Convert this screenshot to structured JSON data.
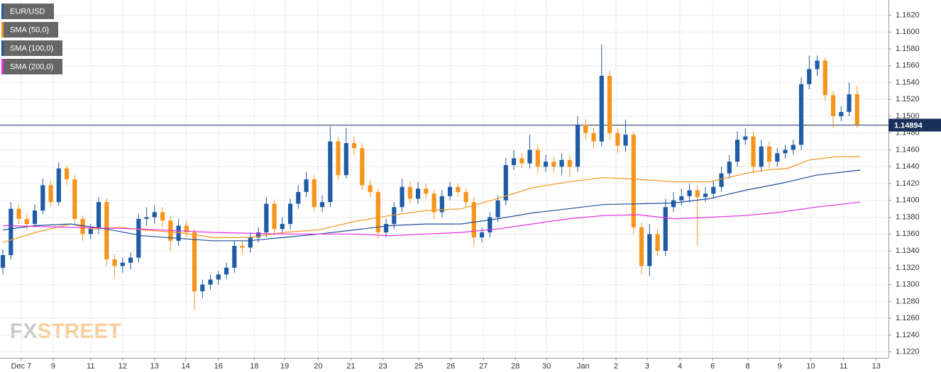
{
  "chart_data": {
    "type": "candlestick",
    "instrument": "EUR/USD",
    "up_color": "#1f5ca6",
    "down_color": "#f7941d",
    "legend": "top-left",
    "grid": true,
    "watermark": [
      "FX",
      "STREET"
    ],
    "last_price": 1.14894,
    "last_price_color": "#1b2f5c",
    "xlim": [
      -0.36,
      110.93
    ],
    "ylim": [
      1.1213,
      1.1638
    ],
    "xticks": [
      {
        "value": 2.3,
        "label": "Dec 7"
      },
      {
        "value": 6.3,
        "label": "9"
      },
      {
        "value": 11.0,
        "label": "11"
      },
      {
        "value": 15.0,
        "label": "12"
      },
      {
        "value": 19.0,
        "label": "13"
      },
      {
        "value": 22.9,
        "label": "14"
      },
      {
        "value": 27.0,
        "label": "16"
      },
      {
        "value": 31.5,
        "label": "18"
      },
      {
        "value": 35.3,
        "label": "19"
      },
      {
        "value": 39.5,
        "label": "20"
      },
      {
        "value": 43.6,
        "label": "21"
      },
      {
        "value": 47.6,
        "label": "23"
      },
      {
        "value": 52.1,
        "label": "25"
      },
      {
        "value": 56.1,
        "label": "26"
      },
      {
        "value": 60.2,
        "label": "27"
      },
      {
        "value": 64.2,
        "label": "28"
      },
      {
        "value": 68.1,
        "label": "30"
      },
      {
        "value": 72.7,
        "label": "Jan"
      },
      {
        "value": 76.8,
        "label": "2"
      },
      {
        "value": 80.7,
        "label": "3"
      },
      {
        "value": 84.8,
        "label": "4"
      },
      {
        "value": 88.9,
        "label": "6"
      },
      {
        "value": 93.3,
        "label": "8"
      },
      {
        "value": 97.3,
        "label": "9"
      },
      {
        "value": 101.2,
        "label": "10"
      },
      {
        "value": 105.3,
        "label": "11"
      },
      {
        "value": 109.4,
        "label": "13"
      }
    ],
    "yticks": [
      {
        "value": 1.122,
        "label": "1.1220"
      },
      {
        "value": 1.124,
        "label": "1.1240"
      },
      {
        "value": 1.126,
        "label": "1.1260"
      },
      {
        "value": 1.128,
        "label": "1.1280"
      },
      {
        "value": 1.13,
        "label": "1.1300"
      },
      {
        "value": 1.132,
        "label": "1.1320"
      },
      {
        "value": 1.134,
        "label": "1.1340"
      },
      {
        "value": 1.136,
        "label": "1.1360"
      },
      {
        "value": 1.138,
        "label": "1.1380"
      },
      {
        "value": 1.14,
        "label": "1.1400"
      },
      {
        "value": 1.142,
        "label": "1.1420"
      },
      {
        "value": 1.144,
        "label": "1.1440"
      },
      {
        "value": 1.146,
        "label": "1.1460"
      },
      {
        "value": 1.148,
        "label": "1.1480"
      },
      {
        "value": 1.15,
        "label": "1.1500"
      },
      {
        "value": 1.152,
        "label": "1.1520"
      },
      {
        "value": 1.154,
        "label": "1.1540"
      },
      {
        "value": 1.156,
        "label": "1.1560"
      },
      {
        "value": 1.158,
        "label": "1.1580"
      },
      {
        "value": 1.16,
        "label": "1.1600"
      },
      {
        "value": 1.162,
        "label": "1.1620"
      }
    ],
    "ohlc": [
      [
        1.132,
        1.1342,
        1.1312,
        1.1335
      ],
      [
        1.1335,
        1.1398,
        1.133,
        1.139
      ],
      [
        1.139,
        1.1395,
        1.1372,
        1.1378
      ],
      [
        1.1378,
        1.1384,
        1.1365,
        1.1372
      ],
      [
        1.1372,
        1.1395,
        1.1368,
        1.1388
      ],
      [
        1.1388,
        1.1426,
        1.1384,
        1.1418
      ],
      [
        1.1418,
        1.1424,
        1.1392,
        1.1398
      ],
      [
        1.1398,
        1.1445,
        1.1394,
        1.1438
      ],
      [
        1.1438,
        1.1442,
        1.1418,
        1.1425
      ],
      [
        1.1425,
        1.143,
        1.1372,
        1.1378
      ],
      [
        1.1378,
        1.1382,
        1.1352,
        1.136
      ],
      [
        1.136,
        1.1372,
        1.1354,
        1.1366
      ],
      [
        1.1366,
        1.1404,
        1.136,
        1.1398
      ],
      [
        1.1398,
        1.1402,
        1.1322,
        1.133
      ],
      [
        1.133,
        1.1336,
        1.1308,
        1.1322
      ],
      [
        1.1322,
        1.1332,
        1.1314,
        1.1326
      ],
      [
        1.1326,
        1.1338,
        1.1318,
        1.1332
      ],
      [
        1.1332,
        1.1384,
        1.1326,
        1.1378
      ],
      [
        1.1378,
        1.1392,
        1.137,
        1.138
      ],
      [
        1.138,
        1.1394,
        1.1372,
        1.1386
      ],
      [
        1.1386,
        1.1392,
        1.1368,
        1.1376
      ],
      [
        1.1376,
        1.1382,
        1.134,
        1.1352
      ],
      [
        1.1352,
        1.1378,
        1.1346,
        1.137
      ],
      [
        1.137,
        1.1376,
        1.1356,
        1.1362
      ],
      [
        1.1362,
        1.1366,
        1.127,
        1.1292
      ],
      [
        1.1292,
        1.1306,
        1.1284,
        1.13
      ],
      [
        1.13,
        1.1312,
        1.1294,
        1.1306
      ],
      [
        1.1306,
        1.1316,
        1.13,
        1.1312
      ],
      [
        1.1312,
        1.1326,
        1.1306,
        1.132
      ],
      [
        1.132,
        1.1352,
        1.1314,
        1.1346
      ],
      [
        1.1346,
        1.1352,
        1.1336,
        1.1344
      ],
      [
        1.1344,
        1.1362,
        1.1338,
        1.1356
      ],
      [
        1.1356,
        1.1368,
        1.135,
        1.1362
      ],
      [
        1.1362,
        1.1404,
        1.1356,
        1.1396
      ],
      [
        1.1396,
        1.14,
        1.1358,
        1.1366
      ],
      [
        1.1366,
        1.138,
        1.136,
        1.1372
      ],
      [
        1.1372,
        1.1402,
        1.1366,
        1.1396
      ],
      [
        1.1396,
        1.1418,
        1.139,
        1.141
      ],
      [
        1.141,
        1.1434,
        1.1404,
        1.1425
      ],
      [
        1.1425,
        1.143,
        1.1386,
        1.1392
      ],
      [
        1.1392,
        1.1406,
        1.1386,
        1.1398
      ],
      [
        1.1398,
        1.1488,
        1.1392,
        1.147
      ],
      [
        1.147,
        1.1476,
        1.1424,
        1.143
      ],
      [
        1.143,
        1.1486,
        1.1426,
        1.1468
      ],
      [
        1.1468,
        1.1476,
        1.1454,
        1.1462
      ],
      [
        1.1462,
        1.1468,
        1.1412,
        1.1418
      ],
      [
        1.1418,
        1.1424,
        1.1404,
        1.141
      ],
      [
        1.141,
        1.1414,
        1.1355,
        1.1362
      ],
      [
        1.1362,
        1.1378,
        1.1356,
        1.1372
      ],
      [
        1.1372,
        1.1398,
        1.1366,
        1.1392
      ],
      [
        1.1392,
        1.1426,
        1.1386,
        1.1416
      ],
      [
        1.1416,
        1.1422,
        1.1396,
        1.1402
      ],
      [
        1.1402,
        1.1422,
        1.1396,
        1.1414
      ],
      [
        1.1414,
        1.142,
        1.1402,
        1.1408
      ],
      [
        1.1408,
        1.1412,
        1.1378,
        1.1386
      ],
      [
        1.1386,
        1.1412,
        1.138,
        1.1405
      ],
      [
        1.1405,
        1.1422,
        1.14,
        1.1416
      ],
      [
        1.1416,
        1.142,
        1.1404,
        1.141
      ],
      [
        1.141,
        1.1414,
        1.1392,
        1.1398
      ],
      [
        1.1398,
        1.1404,
        1.1345,
        1.1356
      ],
      [
        1.1356,
        1.1368,
        1.135,
        1.1362
      ],
      [
        1.1362,
        1.1386,
        1.1356,
        1.138
      ],
      [
        1.138,
        1.1406,
        1.1374,
        1.14
      ],
      [
        1.14,
        1.145,
        1.1394,
        1.1442
      ],
      [
        1.1442,
        1.146,
        1.1436,
        1.145
      ],
      [
        1.145,
        1.1456,
        1.1438,
        1.1444
      ],
      [
        1.1444,
        1.1478,
        1.1438,
        1.146
      ],
      [
        1.146,
        1.1466,
        1.1432,
        1.144
      ],
      [
        1.144,
        1.1454,
        1.1434,
        1.1446
      ],
      [
        1.1446,
        1.1452,
        1.1432,
        1.144
      ],
      [
        1.144,
        1.1456,
        1.143,
        1.1448
      ],
      [
        1.1448,
        1.1454,
        1.1428,
        1.144
      ],
      [
        1.144,
        1.15,
        1.1434,
        1.149
      ],
      [
        1.149,
        1.1496,
        1.1472,
        1.148
      ],
      [
        1.148,
        1.1486,
        1.1462,
        1.147
      ],
      [
        1.147,
        1.1585,
        1.1464,
        1.1548
      ],
      [
        1.1548,
        1.1554,
        1.1472,
        1.148
      ],
      [
        1.148,
        1.1486,
        1.1456,
        1.1465
      ],
      [
        1.1465,
        1.1496,
        1.1458,
        1.1478
      ],
      [
        1.1478,
        1.1482,
        1.136,
        1.1368
      ],
      [
        1.1368,
        1.1374,
        1.1312,
        1.1322
      ],
      [
        1.1322,
        1.1372,
        1.131,
        1.136
      ],
      [
        1.136,
        1.1366,
        1.1334,
        1.134
      ],
      [
        1.134,
        1.1402,
        1.1334,
        1.1392
      ],
      [
        1.1392,
        1.141,
        1.1386,
        1.14
      ],
      [
        1.14,
        1.1414,
        1.1394,
        1.1405
      ],
      [
        1.1405,
        1.142,
        1.1398,
        1.1412
      ],
      [
        1.1412,
        1.1418,
        1.1346,
        1.1404
      ],
      [
        1.1404,
        1.1416,
        1.1398,
        1.1408
      ],
      [
        1.1408,
        1.1424,
        1.1402,
        1.1416
      ],
      [
        1.1416,
        1.144,
        1.141,
        1.1432
      ],
      [
        1.1432,
        1.1454,
        1.1426,
        1.1446
      ],
      [
        1.1446,
        1.1482,
        1.144,
        1.1472
      ],
      [
        1.1472,
        1.1486,
        1.1466,
        1.1476
      ],
      [
        1.1476,
        1.1482,
        1.1432,
        1.144
      ],
      [
        1.144,
        1.1472,
        1.1434,
        1.1464
      ],
      [
        1.1464,
        1.147,
        1.1438,
        1.1446
      ],
      [
        1.1446,
        1.1462,
        1.144,
        1.1456
      ],
      [
        1.1456,
        1.1466,
        1.145,
        1.146
      ],
      [
        1.146,
        1.1472,
        1.1454,
        1.1466
      ],
      [
        1.1466,
        1.1546,
        1.146,
        1.1538
      ],
      [
        1.1538,
        1.1572,
        1.1532,
        1.1556
      ],
      [
        1.1556,
        1.1572,
        1.1548,
        1.1566
      ],
      [
        1.1566,
        1.157,
        1.1518,
        1.1525
      ],
      [
        1.1525,
        1.153,
        1.1486,
        1.15
      ],
      [
        1.15,
        1.1512,
        1.1494,
        1.1505
      ],
      [
        1.1505,
        1.154,
        1.15,
        1.1526
      ],
      [
        1.1526,
        1.1536,
        1.1486,
        1.149
      ]
    ],
    "series": [
      {
        "name": "SMA (50,0)",
        "color": "#f7941d",
        "x": [
          0,
          4.1,
          8.5,
          11.2,
          14.8,
          17.4,
          21.9,
          26.3,
          30.8,
          35.2,
          39.6,
          44.1,
          48.5,
          53.0,
          57.4,
          61.9,
          66.3,
          70.8,
          75.2,
          79.6,
          84.1,
          88.5,
          93.0,
          95.6,
          98.3,
          101.0,
          104.5,
          107.4
        ],
        "values": [
          1.135,
          1.1362,
          1.1372,
          1.1366,
          1.1368,
          1.1365,
          1.1362,
          1.1356,
          1.1356,
          1.1362,
          1.1365,
          1.1375,
          1.1382,
          1.1388,
          1.139,
          1.1402,
          1.1415,
          1.1422,
          1.1427,
          1.1425,
          1.1422,
          1.1422,
          1.1432,
          1.1436,
          1.1438,
          1.1448,
          1.1452,
          1.1452
        ]
      },
      {
        "name": "SMA (100,0)",
        "color": "#1f4e99",
        "x": [
          0,
          4.1,
          8.5,
          13.0,
          17.4,
          21.9,
          26.3,
          30.8,
          35.2,
          39.6,
          44.1,
          48.5,
          53.0,
          57.4,
          61.9,
          66.3,
          70.8,
          75.2,
          79.6,
          84.1,
          88.5,
          93.0,
          97.4,
          101.9,
          107.4
        ],
        "values": [
          1.1365,
          1.137,
          1.1372,
          1.1366,
          1.1358,
          1.1355,
          1.1352,
          1.1352,
          1.1356,
          1.136,
          1.1365,
          1.137,
          1.1372,
          1.1372,
          1.1378,
          1.1385,
          1.139,
          1.1395,
          1.1396,
          1.1397,
          1.1402,
          1.1412,
          1.142,
          1.143,
          1.1436
        ]
      },
      {
        "name": "SMA (200,0)",
        "color": "#e62ee6",
        "x": [
          0,
          8.5,
          17.4,
          26.3,
          35.2,
          44.1,
          48.5,
          53.0,
          57.4,
          61.9,
          66.3,
          70.8,
          75.2,
          79.6,
          84.1,
          88.5,
          93.0,
          97.4,
          101.9,
          107.4
        ],
        "values": [
          1.137,
          1.1368,
          1.1366,
          1.1362,
          1.136,
          1.136,
          1.1358,
          1.136,
          1.1362,
          1.1366,
          1.1372,
          1.1378,
          1.1382,
          1.1383,
          1.1378,
          1.138,
          1.1382,
          1.1386,
          1.1392,
          1.1398
        ]
      }
    ]
  }
}
